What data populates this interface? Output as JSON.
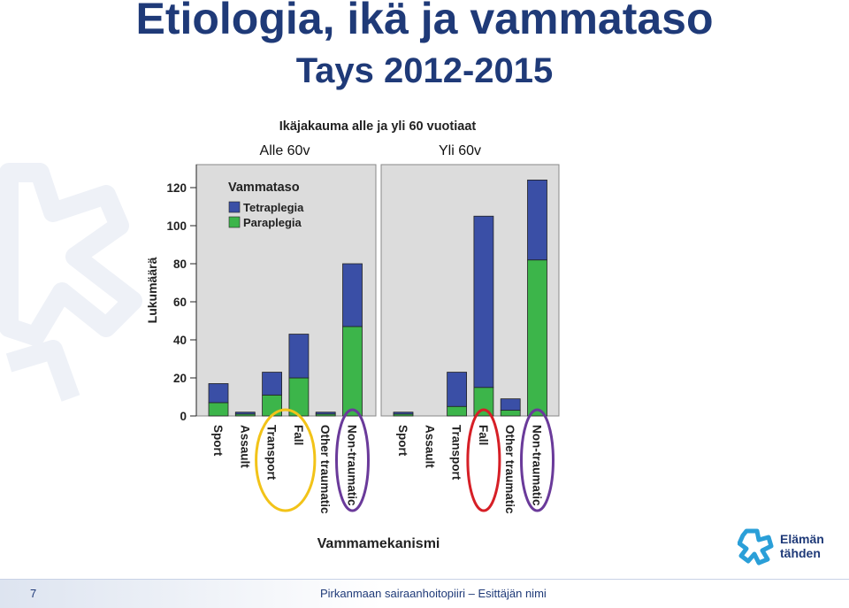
{
  "slide": {
    "title": "Etiologia, ikä ja vammataso",
    "subtitle": "Tays 2012-2015",
    "page_number": "7",
    "footer_text": "Pirkanmaan sairaanhoitopiiri – Esittäjän nimi",
    "logo_line1": "Elämän",
    "logo_line2": "tähden"
  },
  "chart_data": {
    "type": "bar",
    "stacked": true,
    "title": "Ikäjakauma alle ja yli 60 vuotiaat",
    "ylabel": "Lukumäärä",
    "xlabel": "Vammamekanismi",
    "ylim": [
      0,
      125
    ],
    "yticks": [
      0,
      20,
      40,
      60,
      80,
      100,
      120
    ],
    "grid": false,
    "legend": {
      "title": "Vammataso",
      "placement": "top-left",
      "entries": [
        {
          "name": "Tetraplegia",
          "color": "#3a4fa6"
        },
        {
          "name": "Paraplegia",
          "color": "#3cb54a"
        }
      ]
    },
    "categories": [
      "Sport",
      "Assault",
      "Transport",
      "Fall",
      "Other traumatic",
      "Non-traumatic"
    ],
    "panels": [
      {
        "label": "Alle 60v",
        "series": [
          {
            "name": "Paraplegia",
            "values": [
              7,
              1,
              11,
              20,
              1,
              47
            ]
          },
          {
            "name": "Tetraplegia",
            "values": [
              10,
              1,
              12,
              23,
              1,
              33
            ]
          }
        ],
        "circled": [
          {
            "categories": [
              "Transport",
              "Fall"
            ],
            "color": "#f2c318"
          },
          {
            "categories": [
              "Non-traumatic"
            ],
            "color": "#6a3a9a"
          }
        ]
      },
      {
        "label": "Yli 60v",
        "series": [
          {
            "name": "Paraplegia",
            "values": [
              1,
              0,
              5,
              15,
              3,
              82
            ]
          },
          {
            "name": "Tetraplegia",
            "values": [
              1,
              0,
              18,
              90,
              6,
              42
            ]
          }
        ],
        "circled": [
          {
            "categories": [
              "Fall"
            ],
            "color": "#d61f26"
          },
          {
            "categories": [
              "Non-traumatic"
            ],
            "color": "#6a3a9a"
          }
        ]
      }
    ],
    "colors": {
      "tetraplegia": "#3a4fa6",
      "paraplegia": "#3cb54a",
      "panel_bg": "#dcdcdc"
    }
  }
}
